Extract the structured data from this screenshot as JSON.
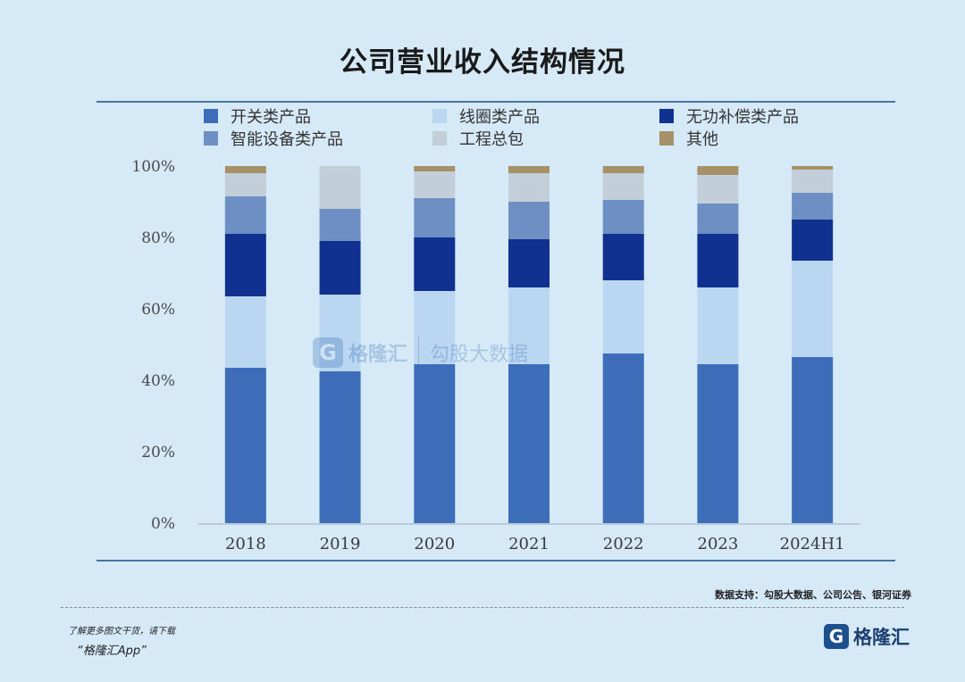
{
  "title": "公司营业收入结构情况",
  "chart_data": {
    "type": "bar",
    "stacked": true,
    "categories": [
      "2018",
      "2019",
      "2020",
      "2021",
      "2022",
      "2023",
      "2024H1"
    ],
    "ylim": [
      0,
      100
    ],
    "yticks": [
      "0%",
      "20%",
      "40%",
      "60%",
      "80%",
      "100%"
    ],
    "legend_position": "top",
    "series": [
      {
        "name": "开关类产品",
        "color": "#3d6db8",
        "values": [
          43.5,
          42.5,
          44.5,
          44.5,
          47.5,
          44.5,
          46.5
        ]
      },
      {
        "name": "线圈类产品",
        "color": "#bad6f1",
        "values": [
          20,
          21.5,
          20.5,
          21.5,
          20.5,
          21.5,
          27
        ]
      },
      {
        "name": "无功补偿类产品",
        "color": "#10318f",
        "values": [
          17.5,
          15,
          15,
          13.5,
          13,
          15,
          11.5
        ]
      },
      {
        "name": "智能设备类产品",
        "color": "#6d8fc4",
        "values": [
          10.5,
          9,
          11,
          10.5,
          9.5,
          8.5,
          7.5
        ]
      },
      {
        "name": "工程总包",
        "color": "#c2cfd9",
        "values": [
          6.5,
          12,
          7.5,
          8,
          7.5,
          8,
          6.5
        ]
      },
      {
        "name": "其他",
        "color": "#a69068",
        "values": [
          2,
          0,
          1.5,
          2,
          2,
          2.5,
          1
        ]
      }
    ]
  },
  "watermark": {
    "logo": "G",
    "brand": "格隆汇",
    "text": "勾股大数据"
  },
  "source": "数据支持：勾股大数据、公司公告、银河证券",
  "promo": {
    "line1": "了解更多图文干货，请下载",
    "line2": "“格隆汇App”"
  },
  "brand": {
    "logo": "G",
    "name": "格隆汇"
  }
}
